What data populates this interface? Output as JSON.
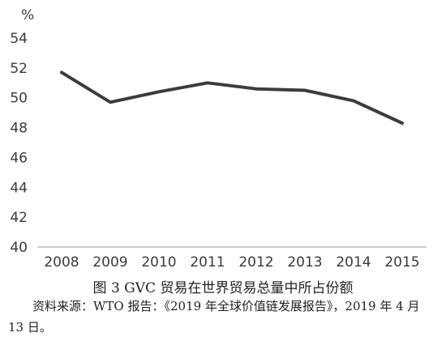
{
  "chart_data": {
    "type": "line",
    "unit": "%",
    "categories": [
      "2008",
      "2009",
      "2010",
      "2011",
      "2012",
      "2013",
      "2014",
      "2015"
    ],
    "series": [
      {
        "values": [
          51.7,
          49.7,
          50.4,
          51.0,
          50.6,
          50.5,
          49.8,
          48.3
        ]
      }
    ],
    "ylim": [
      40,
      54
    ],
    "yticks": [
      40,
      42,
      44,
      46,
      48,
      50,
      52,
      54
    ],
    "grid": false,
    "line_color": "#3c3c3c"
  },
  "caption": "图 3   GVC 贸易在世界贸易总量中所占份额",
  "source": "资料来源：WTO 报告：《2019 年全球价值链发展报告》，2019 年 4 月 13 日。"
}
